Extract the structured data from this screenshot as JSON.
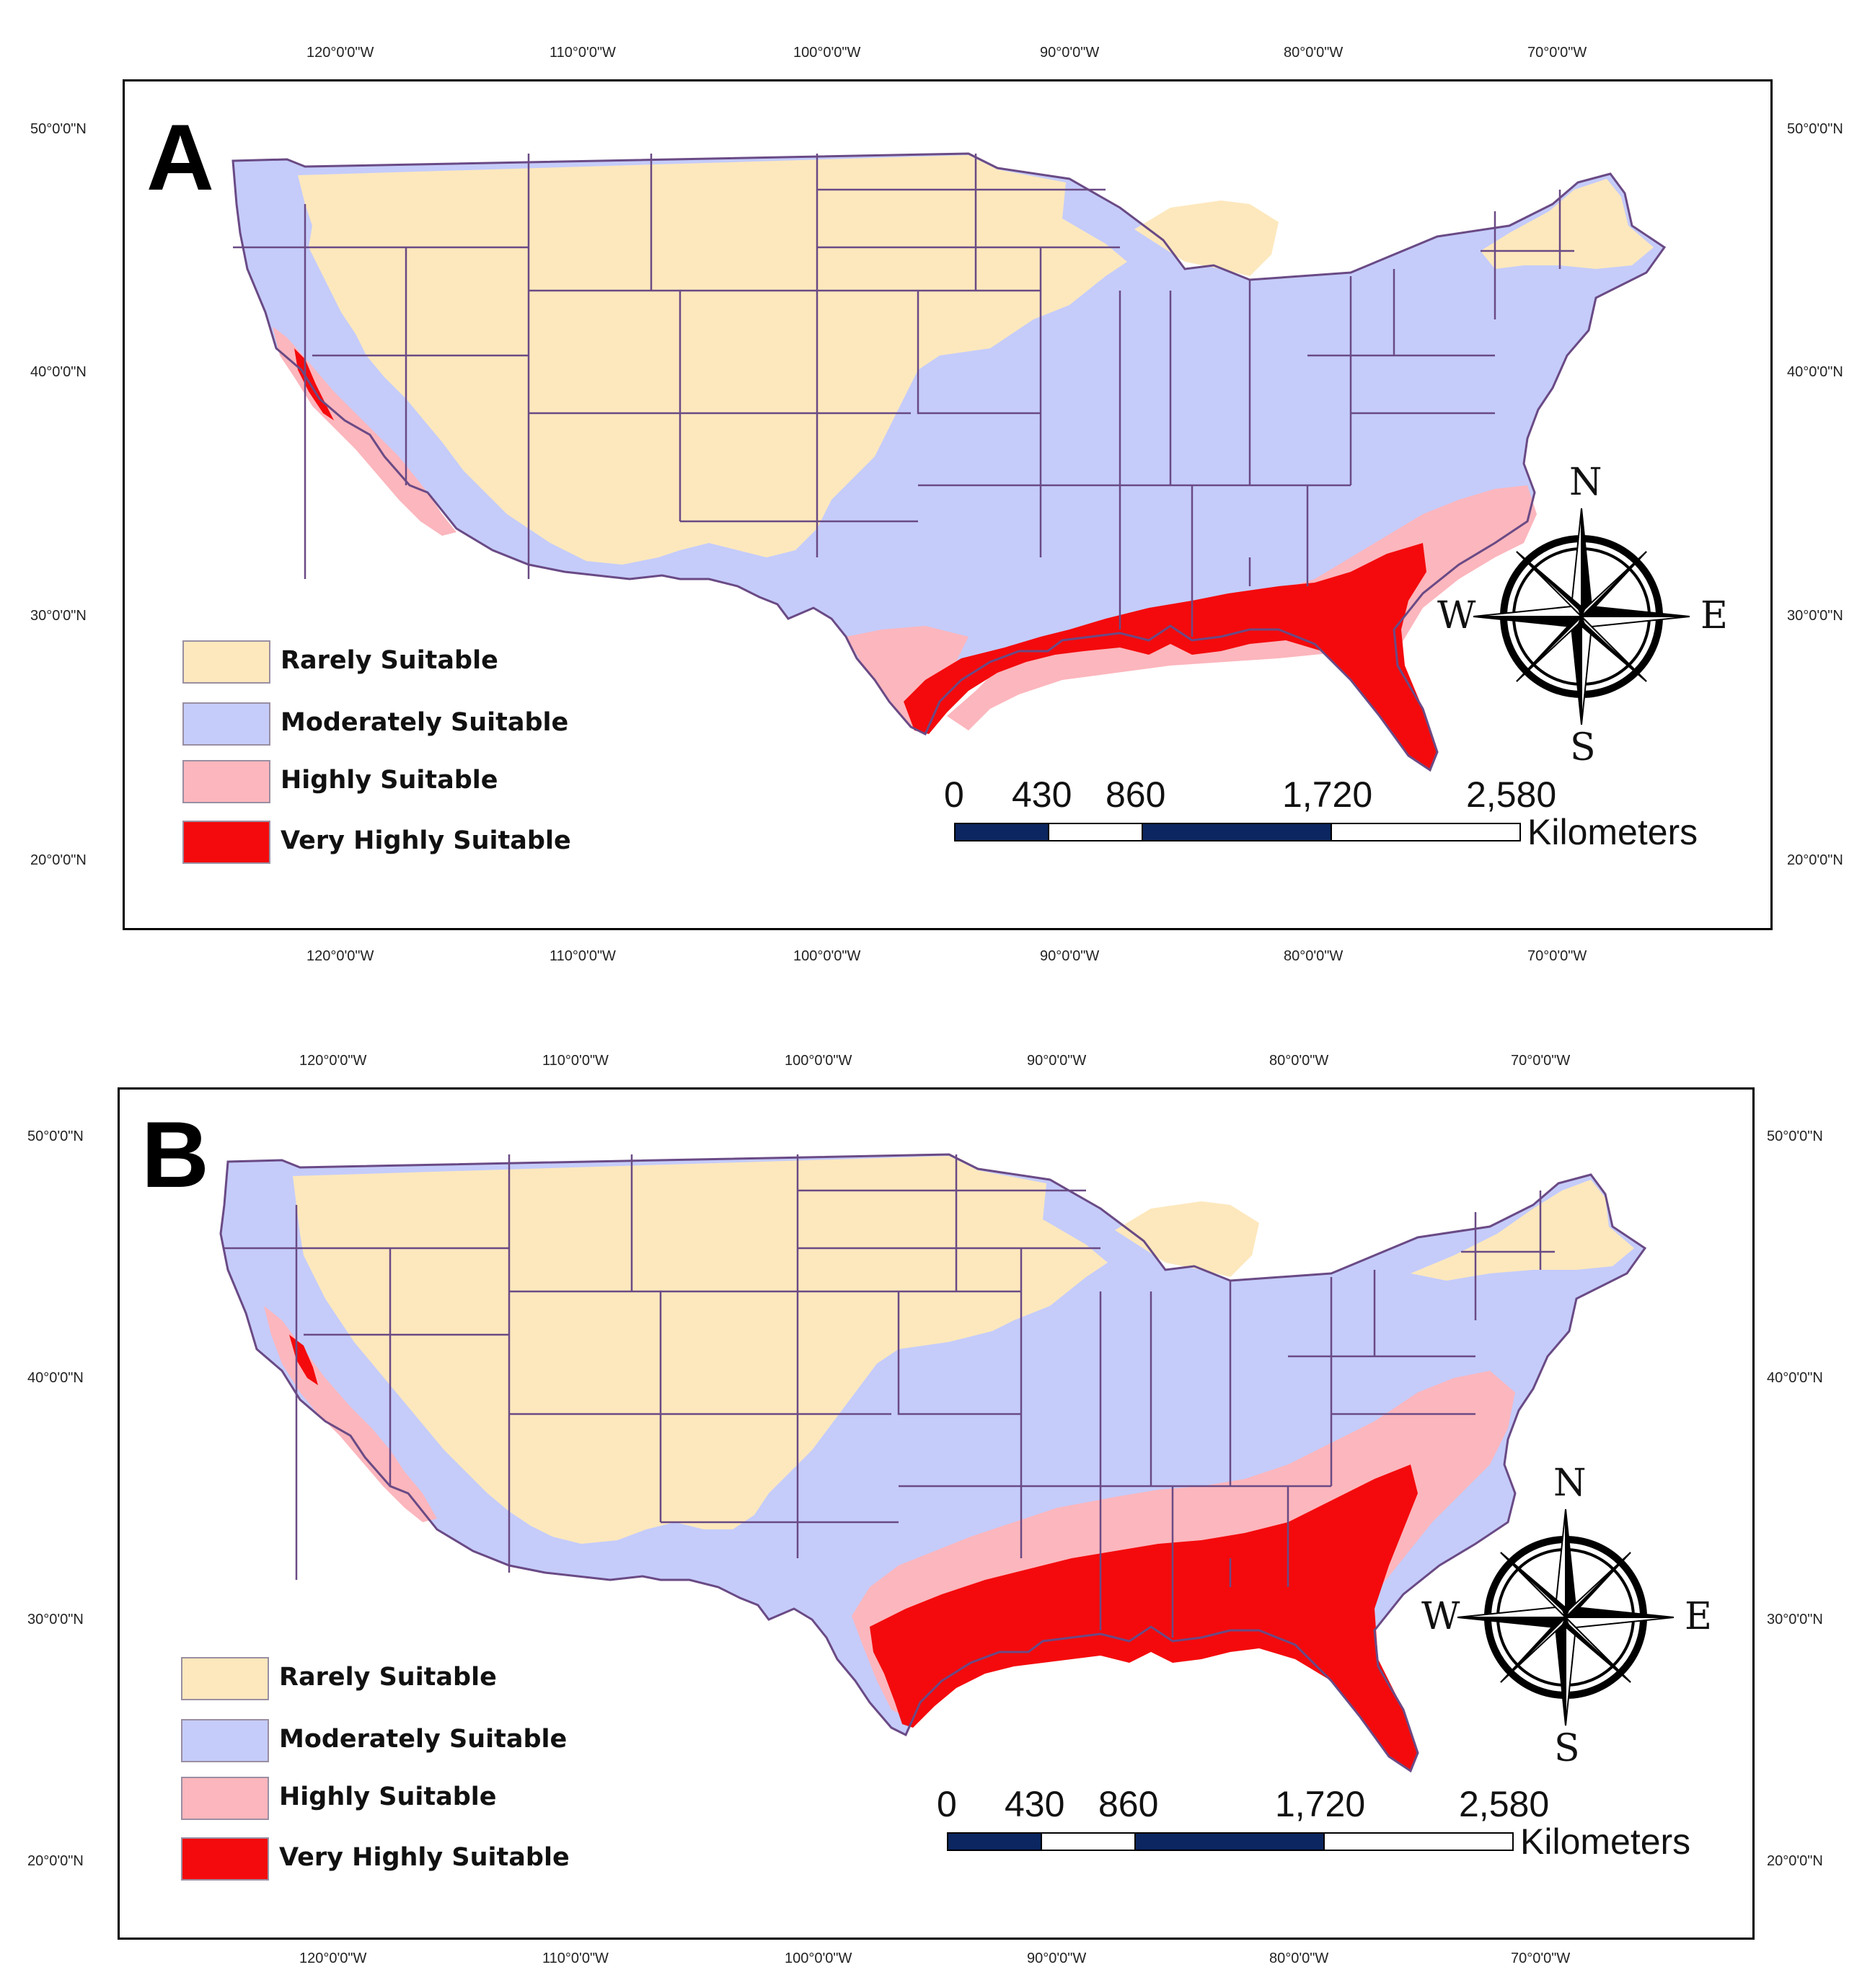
{
  "colors": {
    "rarely": "#fde8bd",
    "moderately": "#c5ccfa",
    "highly": "#fcb6bd",
    "very_highly": "#f40a0c",
    "state_border": "#6a4a85",
    "scale_dark": "#0b2660"
  },
  "legend": [
    {
      "key": "rarely",
      "label": "Rarely Suitable"
    },
    {
      "key": "moderately",
      "label": "Moderately Suitable"
    },
    {
      "key": "highly",
      "label": "Highly Suitable"
    },
    {
      "key": "very_highly",
      "label": "Very Highly Suitable"
    }
  ],
  "longitude_ticks": [
    "120°0'0\"W",
    "110°0'0\"W",
    "100°0'0\"W",
    "90°0'0\"W",
    "80°0'0\"W",
    "70°0'0\"W"
  ],
  "latitude_ticks": [
    "50°0'0\"N",
    "40°0'0\"N",
    "30°0'0\"N",
    "20°0'0\"N"
  ],
  "scale_bar": {
    "labels": [
      "0",
      "430",
      "860",
      "1,720",
      "2,580"
    ],
    "unit": "Kilometers"
  },
  "compass": {
    "north": "N",
    "south": "S",
    "east": "E",
    "west": "W"
  },
  "panels": [
    {
      "letter": "A"
    },
    {
      "letter": "B"
    }
  ]
}
